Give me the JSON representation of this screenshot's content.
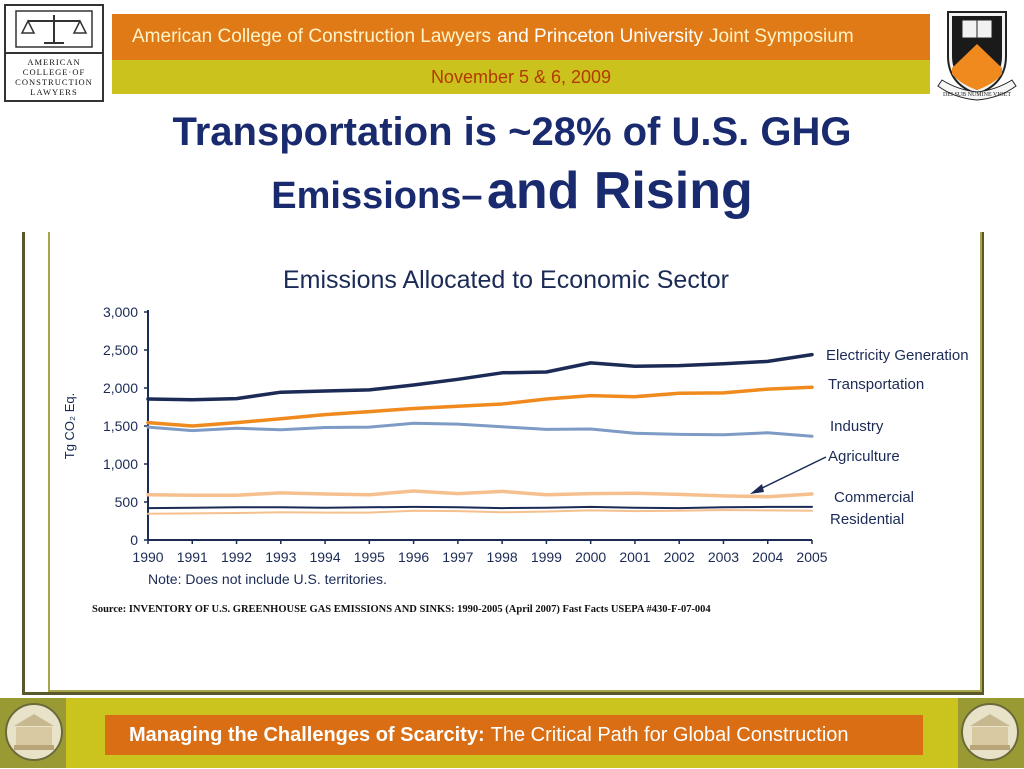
{
  "header": {
    "left_logo_text": [
      "AMERICAN",
      "COLLEGE·OF",
      "CONSTRUCTION",
      "LAWYERS"
    ],
    "band_part1": "American College of Construction Lawyers",
    "band_part2": "and Princeton University",
    "band_part3": "Joint Symposium",
    "date": "November 5 & 6, 2009",
    "right_logo_text": "DEI SUB NUMINE VIGET"
  },
  "slide": {
    "title_line1": "Transportation is ~28% of U.S. GHG",
    "title_line2a": "Emissions–",
    "title_line2b": "and Rising"
  },
  "chart_data": {
    "type": "line",
    "title": "Emissions Allocated to Economic Sector",
    "ylabel": "Tg CO₂ Eq.",
    "xlabel": "",
    "note": "Note: Does not include U.S. territories.",
    "x": [
      1990,
      1991,
      1992,
      1993,
      1994,
      1995,
      1996,
      1997,
      1998,
      1999,
      2000,
      2001,
      2002,
      2003,
      2004,
      2005
    ],
    "ylim": [
      0,
      3000
    ],
    "yticks": [
      0,
      500,
      1000,
      1500,
      2000,
      2500,
      3000
    ],
    "ytick_labels": [
      "0",
      "500",
      "1,000",
      "1,500",
      "2,000",
      "2,500",
      "3,000"
    ],
    "series": [
      {
        "name": "Electricity Generation",
        "color": "#1b2b56",
        "values": [
          1855,
          1845,
          1860,
          1945,
          1960,
          1975,
          2040,
          2115,
          2200,
          2210,
          2330,
          2285,
          2295,
          2320,
          2350,
          2440
        ]
      },
      {
        "name": "Transportation",
        "color": "#f08a1e",
        "values": [
          1545,
          1500,
          1545,
          1595,
          1650,
          1690,
          1730,
          1760,
          1790,
          1855,
          1900,
          1885,
          1930,
          1935,
          1985,
          2010
        ]
      },
      {
        "name": "Industry",
        "color": "#7d9bc4",
        "values": [
          1485,
          1440,
          1470,
          1450,
          1480,
          1485,
          1535,
          1525,
          1490,
          1455,
          1460,
          1405,
          1390,
          1385,
          1410,
          1365
        ]
      },
      {
        "name": "Agriculture",
        "color": "#f6c08e",
        "values": [
          595,
          590,
          590,
          620,
          605,
          595,
          645,
          610,
          640,
          595,
          610,
          615,
          600,
          580,
          570,
          605
        ]
      },
      {
        "name": "Commercial",
        "color": "#1b2b56",
        "values": [
          420,
          425,
          430,
          430,
          425,
          430,
          435,
          430,
          420,
          425,
          435,
          425,
          420,
          430,
          435,
          435
        ]
      },
      {
        "name": "Residential",
        "color": "#f6c08e",
        "values": [
          345,
          350,
          355,
          365,
          360,
          360,
          385,
          380,
          365,
          375,
          390,
          380,
          385,
          395,
          390,
          385
        ]
      }
    ],
    "legend_labels": [
      "Electricity Generation",
      "Transportation",
      "Industry",
      "Agriculture",
      "Commercial",
      "Residential"
    ],
    "grid": false,
    "legend_placement": "right"
  },
  "source_text": "Source: INVENTORY OF U.S. GREENHOUSE GAS EMISSIONS AND SINKS: 1990-2005 (April 2007) Fast Facts USEPA #430-F-07-004",
  "footer": {
    "bold": "Managing the Challenges of Scarcity:",
    "rest": "The Critical Path for Global Construction"
  },
  "colors": {
    "header_orange": "#e07a17",
    "header_lime": "#ccc21e",
    "title_navy": "#1a2a6e",
    "footer_olive": "#9a9a34"
  }
}
